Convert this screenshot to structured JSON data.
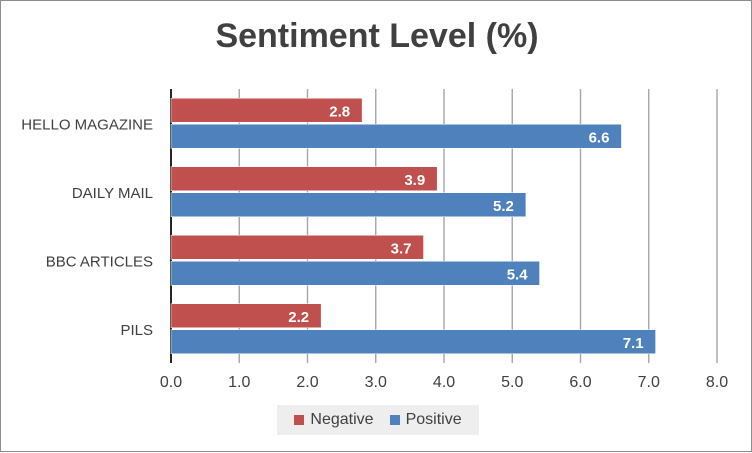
{
  "chart_data": {
    "type": "bar",
    "orientation": "horizontal",
    "title": "Sentiment Level (%)",
    "categories": [
      "HELLO MAGAZINE",
      "DAILY MAIL",
      "BBC ARTICLES",
      "PILS"
    ],
    "series": [
      {
        "name": "Negative",
        "values": [
          2.8,
          3.9,
          3.7,
          2.2
        ],
        "color": "#c0504d"
      },
      {
        "name": "Positive",
        "values": [
          6.6,
          5.2,
          5.4,
          7.1
        ],
        "color": "#4f81bd"
      }
    ],
    "xlim": [
      0,
      8
    ],
    "xticks": [
      "0.0",
      "1.0",
      "2.0",
      "3.0",
      "4.0",
      "5.0",
      "6.0",
      "7.0",
      "8.0"
    ],
    "grid": true,
    "data_labels": true,
    "legend_position": "bottom"
  }
}
